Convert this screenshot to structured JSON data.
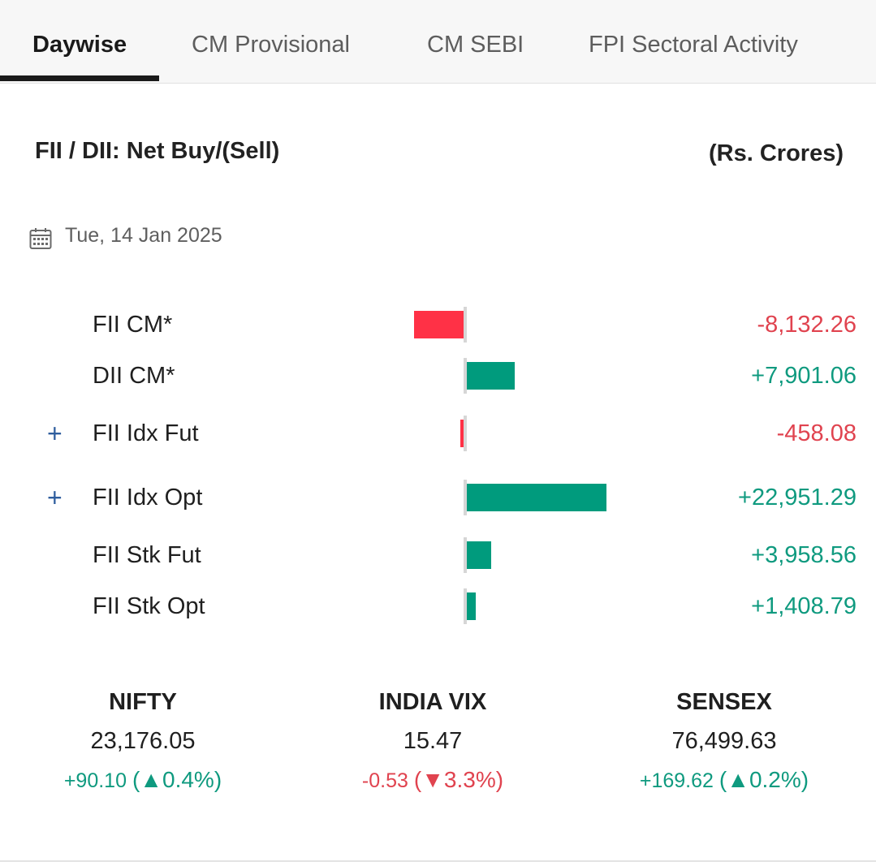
{
  "tabs": [
    {
      "label": "Daywise",
      "active": true
    },
    {
      "label": "CM Provisional",
      "active": false
    },
    {
      "label": "CM SEBI",
      "active": false
    },
    {
      "label": "FPI Sectoral Activity",
      "active": false
    }
  ],
  "section": {
    "title": "FII / DII: Net Buy/(Sell)",
    "units": "(Rs. Crores)",
    "date": "Tue, 14 Jan 2025",
    "date_icon": "calendar-icon"
  },
  "colors": {
    "positive": "#0f9a7f",
    "negative": "#e0434f",
    "negative_bar": "#ff3146",
    "positive_bar": "#009b7d",
    "expand": "#2f5e9e"
  },
  "rows": [
    {
      "label": "FII CM*",
      "value": "-8,132.26",
      "amount": -8132.26,
      "expandable": false
    },
    {
      "label": "DII CM*",
      "value": "+7,901.06",
      "amount": 7901.06,
      "expandable": false
    },
    {
      "label": "FII Idx Fut",
      "value": "-458.08",
      "amount": -458.08,
      "expandable": true
    },
    {
      "label": "FII Idx Opt",
      "value": "+22,951.29",
      "amount": 22951.29,
      "expandable": true
    },
    {
      "label": "FII Stk Fut",
      "value": "+3,958.56",
      "amount": 3958.56,
      "expandable": false
    },
    {
      "label": "FII Stk Opt",
      "value": "+1,408.79",
      "amount": 1408.79,
      "expandable": false
    }
  ],
  "expand_symbol": "+",
  "indices": [
    {
      "name": "NIFTY",
      "value": "23,176.05",
      "change": "+90.10",
      "pct_prefix": "(",
      "arrow": "▲",
      "pct": "0.4%",
      "pct_suffix": ")",
      "direction": "up"
    },
    {
      "name": "INDIA VIX",
      "value": "15.47",
      "change": "-0.53",
      "pct_prefix": "(",
      "arrow": "▼",
      "pct": "3.3%",
      "pct_suffix": ")",
      "direction": "down"
    },
    {
      "name": "SENSEX",
      "value": "76,499.63",
      "change": "+169.62",
      "pct_prefix": "(",
      "arrow": "▲",
      "pct": "0.2%",
      "pct_suffix": ")",
      "direction": "up"
    }
  ]
}
